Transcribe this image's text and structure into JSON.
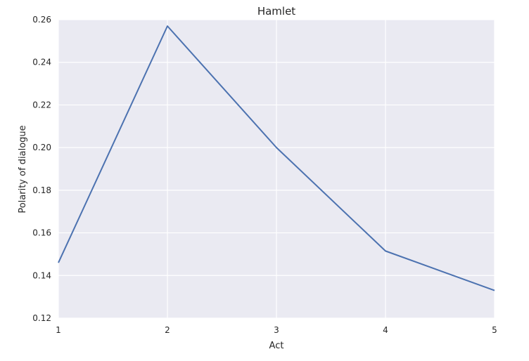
{
  "chart_data": {
    "type": "line",
    "title": "Hamlet",
    "xlabel": "Act",
    "ylabel": "Polarity of dialogue",
    "x": [
      1,
      2,
      3,
      4,
      5
    ],
    "xticks": [
      "1",
      "2",
      "3",
      "4",
      "5"
    ],
    "yticks": [
      "0.12",
      "0.14",
      "0.16",
      "0.18",
      "0.20",
      "0.22",
      "0.24",
      "0.26"
    ],
    "series": [
      {
        "values": [
          0.146,
          0.257,
          0.2,
          0.1515,
          0.133
        ]
      }
    ],
    "xlim": [
      1,
      5
    ],
    "ylim": [
      0.12,
      0.26
    ],
    "grid": true,
    "colors": {
      "background": "#eaeaf2",
      "grid": "#ffffff",
      "line": "#4c72b0"
    }
  }
}
